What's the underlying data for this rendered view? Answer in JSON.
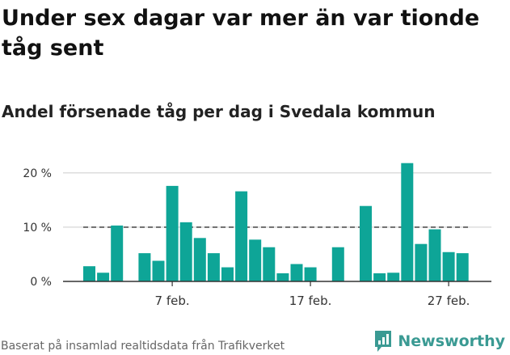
{
  "title": "Under sex dagar var mer än var tionde tåg sent",
  "subtitle": "Andel försenade tåg per dag i Svedala kommun",
  "footer": "Baserat på insamlad realtidsdata från Trafikverket",
  "brand": {
    "name": "Newsworthy",
    "color": "#3a9a93"
  },
  "chart_data": {
    "type": "bar",
    "colors": {
      "bar": "#0ea597",
      "grid": "#dddddd",
      "axis": "#333333",
      "reference": "#555555"
    },
    "ylim": [
      0,
      22.5
    ],
    "y_ticks": [
      {
        "value": 0,
        "label": "0 %"
      },
      {
        "value": 10,
        "label": "10 %"
      },
      {
        "value": 20,
        "label": "20 %"
      }
    ],
    "x_ticks": [
      {
        "index": 6,
        "label": "7 feb."
      },
      {
        "index": 16,
        "label": "17 feb."
      },
      {
        "index": 26,
        "label": "27 feb."
      }
    ],
    "reference_line": 10,
    "categories": [
      "1 feb.",
      "2 feb.",
      "3 feb.",
      "4 feb.",
      "5 feb.",
      "6 feb.",
      "7 feb.",
      "8 feb.",
      "9 feb.",
      "10 feb.",
      "11 feb.",
      "12 feb.",
      "13 feb.",
      "14 feb.",
      "15 feb.",
      "16 feb.",
      "17 feb.",
      "18 feb.",
      "19 feb.",
      "20 feb.",
      "21 feb.",
      "22 feb.",
      "23 feb.",
      "24 feb.",
      "25 feb.",
      "26 feb.",
      "27 feb.",
      "28 feb."
    ],
    "values": [
      2.8,
      1.6,
      10.3,
      0,
      5.2,
      3.8,
      17.6,
      10.9,
      8.0,
      5.2,
      2.6,
      16.6,
      7.7,
      6.3,
      1.5,
      3.2,
      2.6,
      0,
      6.3,
      0,
      13.9,
      1.5,
      1.6,
      21.8,
      6.9,
      9.6,
      5.4,
      5.2
    ],
    "xlabel": "",
    "ylabel": "",
    "grid": true
  }
}
